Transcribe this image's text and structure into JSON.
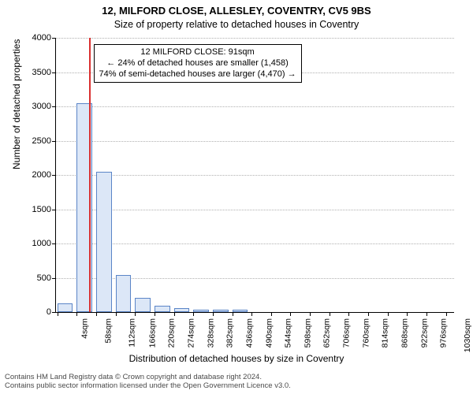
{
  "chart": {
    "type": "histogram",
    "title_main": "12, MILFORD CLOSE, ALLESLEY, COVENTRY, CV5 9BS",
    "title_sub": "Size of property relative to detached houses in Coventry",
    "yaxis_title": "Number of detached properties",
    "xaxis_title": "Distribution of detached houses by size in Coventry",
    "title_fontsize": 13,
    "subtitle_fontsize": 12.5,
    "label_fontsize": 12,
    "tick_fontsize": 11,
    "background_color": "#ffffff",
    "grid_color": "#b0b0b0",
    "bar_fill": "#dce7f7",
    "bar_border": "#5b85c7",
    "marker_color": "#d93030",
    "text_color": "#000000",
    "footer_color": "#4a4a4a",
    "ylim": [
      0,
      4000
    ],
    "ytick_step": 500,
    "yticks": [
      0,
      500,
      1000,
      1500,
      2000,
      2500,
      3000,
      3500,
      4000
    ],
    "xlim_sqm": [
      0,
      1107
    ],
    "xticks_sqm": [
      4,
      58,
      112,
      166,
      220,
      274,
      328,
      382,
      436,
      490,
      544,
      598,
      652,
      706,
      760,
      814,
      868,
      922,
      976,
      1030,
      1084
    ],
    "bar_width_sqm": 43,
    "bar_gap_sqm": 11,
    "bars": [
      {
        "start_sqm": 4,
        "value": 130
      },
      {
        "start_sqm": 58,
        "value": 3050
      },
      {
        "start_sqm": 112,
        "value": 2050
      },
      {
        "start_sqm": 166,
        "value": 540
      },
      {
        "start_sqm": 220,
        "value": 210
      },
      {
        "start_sqm": 274,
        "value": 90
      },
      {
        "start_sqm": 328,
        "value": 55
      },
      {
        "start_sqm": 382,
        "value": 40
      },
      {
        "start_sqm": 436,
        "value": 30
      },
      {
        "start_sqm": 490,
        "value": 30
      },
      {
        "start_sqm": 544,
        "value": 0
      },
      {
        "start_sqm": 598,
        "value": 0
      },
      {
        "start_sqm": 652,
        "value": 0
      },
      {
        "start_sqm": 706,
        "value": 0
      },
      {
        "start_sqm": 760,
        "value": 0
      },
      {
        "start_sqm": 814,
        "value": 0
      },
      {
        "start_sqm": 868,
        "value": 0
      },
      {
        "start_sqm": 922,
        "value": 0
      },
      {
        "start_sqm": 976,
        "value": 0
      },
      {
        "start_sqm": 1030,
        "value": 0
      },
      {
        "start_sqm": 1084,
        "value": 0
      }
    ],
    "marker_sqm": 91,
    "annot": {
      "line1": "12 MILFORD CLOSE: 91sqm",
      "line2": "← 24% of detached houses are smaller (1,458)",
      "line3": "74% of semi-detached houses are larger (4,470) →",
      "y_value": 3630
    },
    "footer_line1": "Contains HM Land Registry data © Crown copyright and database right 2024.",
    "footer_line2": "Contains public sector information licensed under the Open Government Licence v3.0."
  }
}
